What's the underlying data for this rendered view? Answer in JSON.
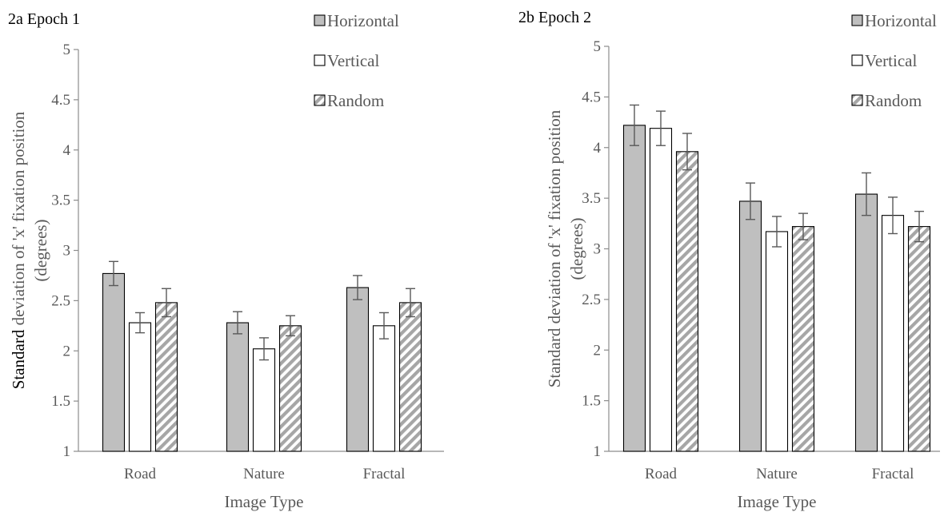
{
  "chart_data": [
    {
      "type": "bar",
      "title": "2a Epoch 1",
      "xlabel": "Image Type",
      "ylabel_parts": [
        "Standard",
        " deviation of 'x' fixation position",
        "(degrees)"
      ],
      "categories": [
        "Road",
        "Nature",
        "Fractal"
      ],
      "ylim": [
        1,
        5
      ],
      "yticks": [
        "1",
        "1.5",
        "2",
        "2.5",
        "3",
        "3.5",
        "4",
        "4.5",
        "5"
      ],
      "ytick_values": [
        1,
        1.5,
        2,
        2.5,
        3,
        3.5,
        4,
        4.5,
        5
      ],
      "grid": false,
      "legend_position": "top-right",
      "series": [
        {
          "name": "Horizontal",
          "pattern": "solid",
          "color": "#BFBFBF",
          "values": [
            2.77,
            2.28,
            2.63
          ],
          "errors": [
            0.12,
            0.11,
            0.12
          ]
        },
        {
          "name": "Vertical",
          "pattern": "white",
          "color": "#FFFFFF",
          "values": [
            2.28,
            2.02,
            2.25
          ],
          "errors": [
            0.1,
            0.11,
            0.13
          ]
        },
        {
          "name": "Random",
          "pattern": "diagonal-stripes",
          "color": "#A6A6A6",
          "values": [
            2.48,
            2.25,
            2.48
          ],
          "errors": [
            0.14,
            0.1,
            0.14
          ]
        }
      ]
    },
    {
      "type": "bar",
      "title": "2b Epoch 2",
      "xlabel": "Image Type",
      "ylabel_parts": [
        "",
        "Standard deviation of 'x' fixation position",
        "(degrees)"
      ],
      "categories": [
        "Road",
        "Nature",
        "Fractal"
      ],
      "ylim": [
        1,
        5
      ],
      "yticks": [
        "1",
        "1.5",
        "2",
        "2.5",
        "3",
        "3.5",
        "4",
        "4.5",
        "5"
      ],
      "ytick_values": [
        1,
        1.5,
        2,
        2.5,
        3,
        3.5,
        4,
        4.5,
        5
      ],
      "grid": false,
      "legend_position": "top-right",
      "series": [
        {
          "name": "Horizontal",
          "pattern": "solid",
          "color": "#BFBFBF",
          "values": [
            4.22,
            3.47,
            3.54
          ],
          "errors": [
            0.2,
            0.18,
            0.21
          ]
        },
        {
          "name": "Vertical",
          "pattern": "white",
          "color": "#FFFFFF",
          "values": [
            4.19,
            3.17,
            3.33
          ],
          "errors": [
            0.17,
            0.15,
            0.18
          ]
        },
        {
          "name": "Random",
          "pattern": "diagonal-stripes",
          "color": "#A6A6A6",
          "values": [
            3.96,
            3.22,
            3.22
          ],
          "errors": [
            0.18,
            0.13,
            0.15
          ]
        }
      ]
    }
  ]
}
